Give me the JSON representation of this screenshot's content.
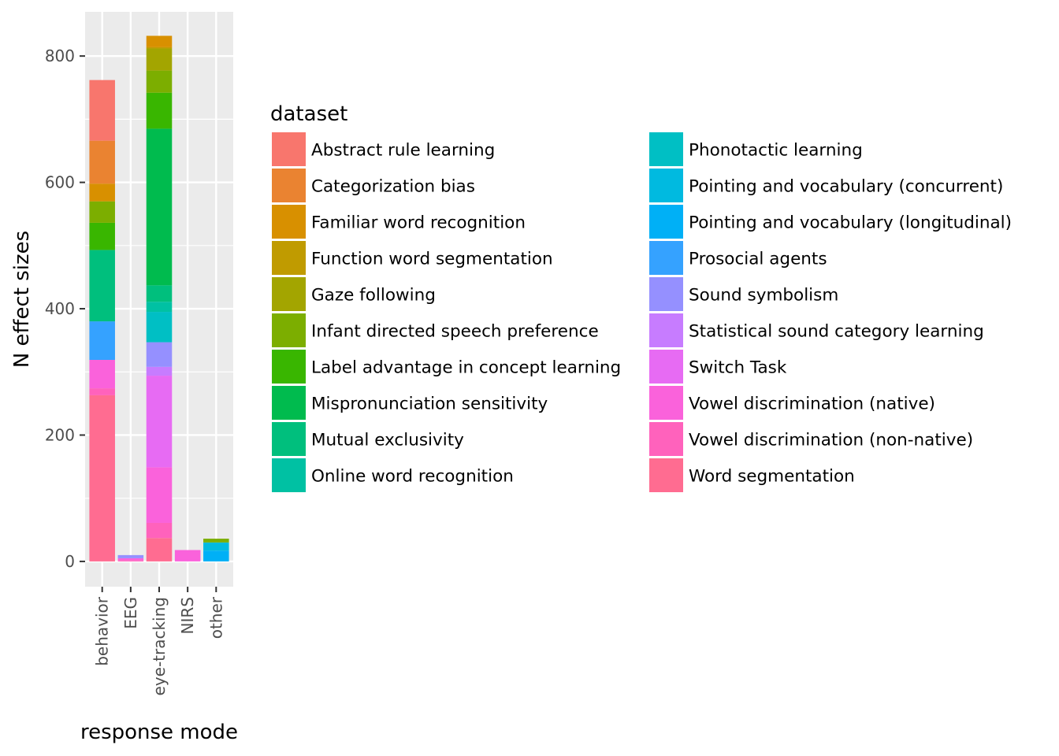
{
  "chart_data": {
    "type": "bar",
    "stacked": true,
    "title": "",
    "xlabel": "response mode",
    "ylabel": "N effect sizes",
    "categories": [
      "behavior",
      "EEG",
      "eye-tracking",
      "NIRS",
      "other"
    ],
    "y_ticks": [
      0,
      200,
      400,
      600,
      800
    ],
    "ylim": [
      -40,
      870
    ],
    "grid": true,
    "legend": {
      "title": "dataset",
      "position": "right",
      "columns": 2
    },
    "series": [
      {
        "name": "Abstract rule learning",
        "color": "#F8766D",
        "values": [
          96,
          0,
          0,
          0,
          0
        ]
      },
      {
        "name": "Categorization bias",
        "color": "#EA8331",
        "values": [
          68,
          0,
          0,
          0,
          0
        ]
      },
      {
        "name": "Familiar word recognition",
        "color": "#D89000",
        "values": [
          28,
          0,
          18,
          0,
          0
        ]
      },
      {
        "name": "Function word segmentation",
        "color": "#C09B00",
        "values": [
          0,
          0,
          2,
          0,
          0
        ]
      },
      {
        "name": "Gaze following",
        "color": "#A3A500",
        "values": [
          0,
          0,
          35,
          0,
          0
        ]
      },
      {
        "name": "Infant directed speech preference",
        "color": "#7CAE00",
        "values": [
          34,
          0,
          35,
          0,
          6
        ]
      },
      {
        "name": "Label advantage in concept learning",
        "color": "#39B600",
        "values": [
          43,
          0,
          57,
          0,
          0
        ]
      },
      {
        "name": "Mispronunciation sensitivity",
        "color": "#00BB4E",
        "values": [
          0,
          0,
          248,
          0,
          0
        ]
      },
      {
        "name": "Mutual exclusivity",
        "color": "#00BF7D",
        "values": [
          113,
          0,
          26,
          0,
          0
        ]
      },
      {
        "name": "Online word recognition",
        "color": "#00C1A3",
        "values": [
          0,
          0,
          16,
          0,
          0
        ]
      },
      {
        "name": "Phonotactic learning",
        "color": "#00BFC4",
        "values": [
          0,
          0,
          48,
          0,
          0
        ]
      },
      {
        "name": "Pointing and vocabulary (concurrent)",
        "color": "#00BAE0",
        "values": [
          0,
          0,
          0,
          0,
          13
        ]
      },
      {
        "name": "Pointing and vocabulary (longitudinal)",
        "color": "#00B0F6",
        "values": [
          0,
          0,
          0,
          0,
          17
        ]
      },
      {
        "name": "Prosocial agents",
        "color": "#35A2FF",
        "values": [
          61,
          0,
          0,
          0,
          0
        ]
      },
      {
        "name": "Sound symbolism",
        "color": "#9590FF",
        "values": [
          0,
          5,
          39,
          0,
          0
        ]
      },
      {
        "name": "Statistical sound category learning",
        "color": "#C77CFF",
        "values": [
          0,
          0,
          14,
          0,
          0
        ]
      },
      {
        "name": "Switch Task",
        "color": "#E76BF3",
        "values": [
          0,
          0,
          145,
          0,
          0
        ]
      },
      {
        "name": "Vowel discrimination (native)",
        "color": "#FA62DB",
        "values": [
          45,
          3,
          88,
          18,
          0
        ]
      },
      {
        "name": "Vowel discrimination (non-native)",
        "color": "#FF62BC",
        "values": [
          11,
          2,
          24,
          0,
          0
        ]
      },
      {
        "name": "Word segmentation",
        "color": "#FF6C91",
        "values": [
          263,
          0,
          37,
          0,
          0
        ]
      }
    ]
  }
}
